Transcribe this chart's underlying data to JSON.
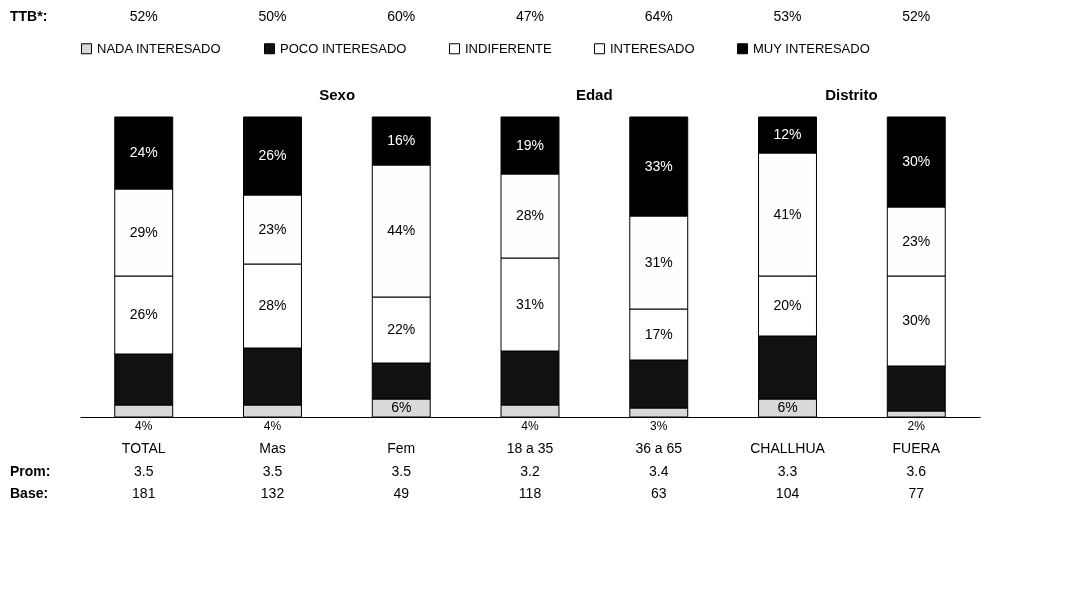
{
  "chart_data": {
    "type": "bar",
    "stacked": true,
    "legend": "top",
    "categories": [
      "TOTAL",
      "Mas",
      "Fem",
      "18 a 35",
      "36 a 65",
      "CHALLHUA",
      "FUERA"
    ],
    "series": [
      {
        "name": "NADA INTERESADO",
        "color": "#d9d9d9",
        "values": [
          4,
          4,
          6,
          4,
          3,
          6,
          2
        ],
        "value_labels": [
          "4%",
          "4%",
          "6%",
          "4%",
          "3%",
          "6%",
          "2%"
        ]
      },
      {
        "name": "POCO INTERESADO",
        "color": "#111111",
        "values": [
          17,
          19,
          12,
          18,
          16,
          21,
          15
        ],
        "value_labels": [
          null,
          null,
          null,
          null,
          null,
          null,
          null
        ]
      },
      {
        "name": "INDIFERENTE",
        "color": "#ffffff",
        "values": [
          26,
          28,
          22,
          31,
          17,
          20,
          30
        ],
        "value_labels": [
          "26%",
          "28%",
          "22%",
          "31%",
          "17%",
          "20%",
          "30%"
        ]
      },
      {
        "name": "INTERESADO",
        "color": "#fefefe",
        "values": [
          29,
          23,
          44,
          28,
          31,
          41,
          23
        ],
        "value_labels": [
          "29%",
          "23%",
          "44%",
          "28%",
          "31%",
          "41%",
          "23%"
        ]
      },
      {
        "name": "MUY INTERESADO",
        "color": "#000000",
        "values": [
          24,
          26,
          16,
          19,
          33,
          12,
          30
        ],
        "value_labels": [
          "24%",
          "26%",
          "16%",
          "19%",
          "33%",
          "12%",
          "30%"
        ]
      }
    ],
    "annotations": [
      "Sexo",
      "Edad",
      "Distrito",
      "TTB*:",
      "52%",
      "50%",
      "60%",
      "47%",
      "64%",
      "53%",
      "52%",
      "Prom:",
      "3.5",
      "3.5",
      "3.5",
      "3.2",
      "3.4",
      "3.3",
      "3.6",
      "Base:",
      "181",
      "132",
      "49",
      "118",
      "63",
      "104",
      "77"
    ]
  }
}
